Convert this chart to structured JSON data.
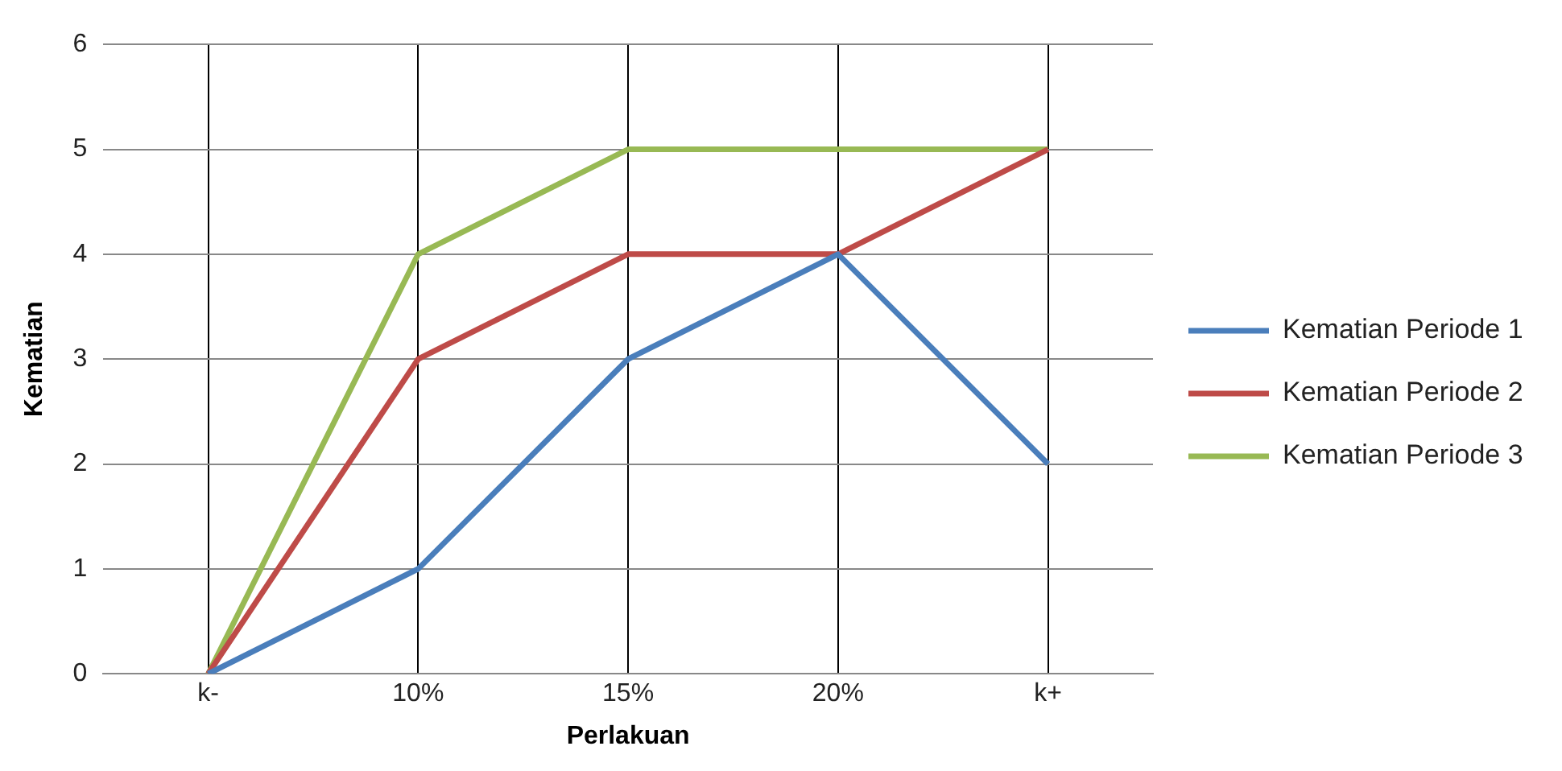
{
  "chart_data": {
    "type": "line",
    "xlabel": "Perlakuan",
    "ylabel": "Kematian",
    "categories": [
      "k-",
      "10%",
      "15%",
      "20%",
      "k+"
    ],
    "series": [
      {
        "name": "Kematian Periode 1",
        "color": "#4a7ebb",
        "values": [
          0,
          1,
          3,
          4,
          2
        ]
      },
      {
        "name": "Kematian Periode 2",
        "color": "#be4b48",
        "values": [
          0,
          3,
          4,
          4,
          5
        ]
      },
      {
        "name": "Kematian Periode 3",
        "color": "#98b954",
        "values": [
          0,
          4,
          5,
          5,
          5
        ]
      }
    ],
    "ylim": [
      0,
      6
    ],
    "yticks": [
      0,
      1,
      2,
      3,
      4,
      5,
      6
    ],
    "grid": true,
    "legend": "right",
    "marker": "none",
    "line_style": "solid"
  }
}
